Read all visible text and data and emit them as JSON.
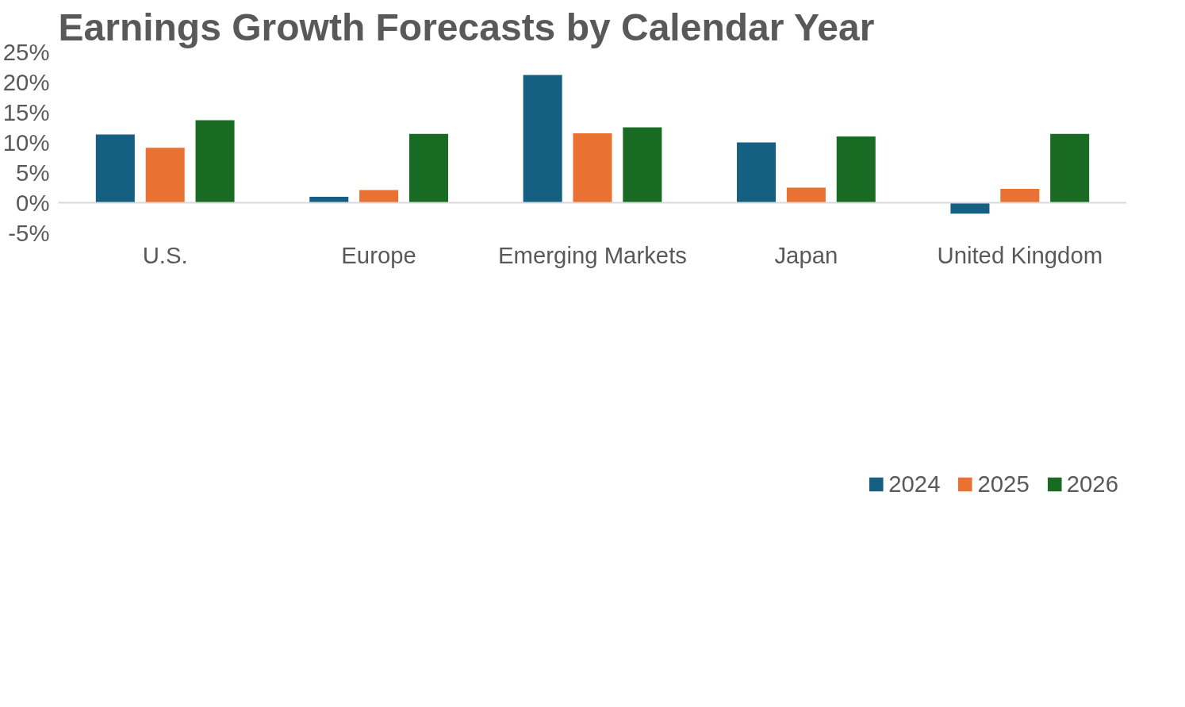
{
  "chart_data": {
    "type": "bar",
    "title": "Earnings Growth Forecasts by Calendar Year",
    "categories": [
      "U.S.",
      "Europe",
      "Emerging Markets",
      "Japan",
      "United Kingdom"
    ],
    "series": [
      {
        "name": "2024",
        "color": "#155f82",
        "values": [
          11.3,
          1.0,
          21.2,
          10.0,
          -1.8
        ]
      },
      {
        "name": "2025",
        "color": "#e97132",
        "values": [
          9.1,
          2.1,
          11.5,
          2.5,
          2.3
        ]
      },
      {
        "name": "2026",
        "color": "#196b24",
        "values": [
          13.7,
          11.4,
          12.5,
          11.0,
          11.4
        ]
      }
    ],
    "ylim": [
      -5,
      25
    ],
    "yticks": [
      {
        "value": -5,
        "label": "-5%"
      },
      {
        "value": 0,
        "label": "0%"
      },
      {
        "value": 5,
        "label": "5%"
      },
      {
        "value": 10,
        "label": "10%"
      },
      {
        "value": 15,
        "label": "15%"
      },
      {
        "value": 20,
        "label": "20%"
      },
      {
        "value": 25,
        "label": "25%"
      }
    ],
    "grid": false,
    "legend": "bottom"
  }
}
